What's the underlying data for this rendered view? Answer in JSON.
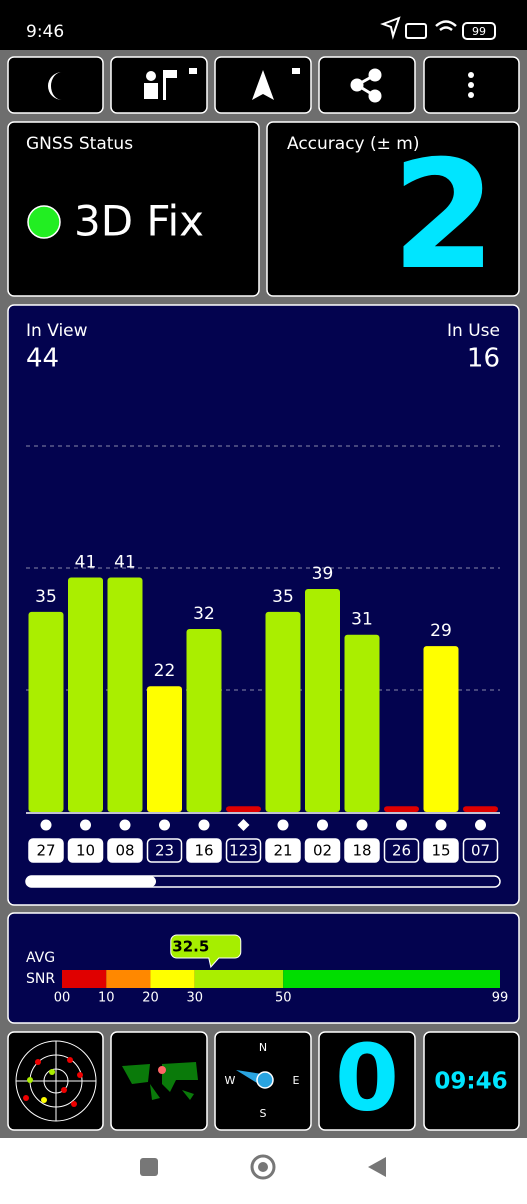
{
  "status_bar": {
    "time": "9:46",
    "battery": "99"
  },
  "gnss_status": {
    "title": "GNSS Status",
    "fix": "3D Fix"
  },
  "accuracy": {
    "title": "Accuracy (± m)",
    "value": "2"
  },
  "satellites": {
    "in_view_label": "In View",
    "in_view": 44,
    "in_use_label": "In Use",
    "in_use": 16
  },
  "chart_data": {
    "type": "bar",
    "categories": [
      "27",
      "10",
      "08",
      "23",
      "16",
      "123",
      "21",
      "02",
      "18",
      "26",
      "15",
      "07"
    ],
    "values": [
      35,
      41,
      41,
      22,
      32,
      1,
      35,
      39,
      31,
      1,
      29,
      1
    ],
    "value_labels": [
      "35",
      "41",
      "41",
      "22",
      "32",
      null,
      "35",
      "39",
      "31",
      null,
      "29",
      null
    ],
    "colors": [
      "#aaee00",
      "#aaee00",
      "#aaee00",
      "#ffff00",
      "#aaee00",
      "#e00000",
      "#aaee00",
      "#aaee00",
      "#aaee00",
      "#e00000",
      "#ffff00",
      "#e00000"
    ],
    "in_use": [
      true,
      true,
      true,
      false,
      true,
      false,
      true,
      true,
      true,
      false,
      true,
      false
    ],
    "markers": [
      "circle",
      "circle",
      "circle",
      "circle",
      "circle",
      "diamond",
      "circle",
      "circle",
      "circle",
      "circle",
      "circle",
      "circle"
    ],
    "ylim": [
      0,
      64
    ]
  },
  "snr": {
    "label_1": "AVG",
    "label_2": "SNR",
    "average": 32.5,
    "xlim": [
      0,
      99
    ],
    "xticks": [
      {
        "value": 0,
        "label": "00"
      },
      10,
      20,
      30,
      50,
      99
    ],
    "segments": [
      {
        "to": 10,
        "color": "#e00000"
      },
      {
        "to": 20,
        "color": "#ff8800"
      },
      {
        "to": 30,
        "color": "#ffff00"
      },
      {
        "to": 50,
        "color": "#aaee00"
      },
      {
        "to": 99,
        "color": "#00dd00"
      }
    ]
  },
  "tiles": {
    "compass": [
      "N",
      "E",
      "S",
      "W"
    ],
    "count": "0",
    "clock": "09:46"
  }
}
